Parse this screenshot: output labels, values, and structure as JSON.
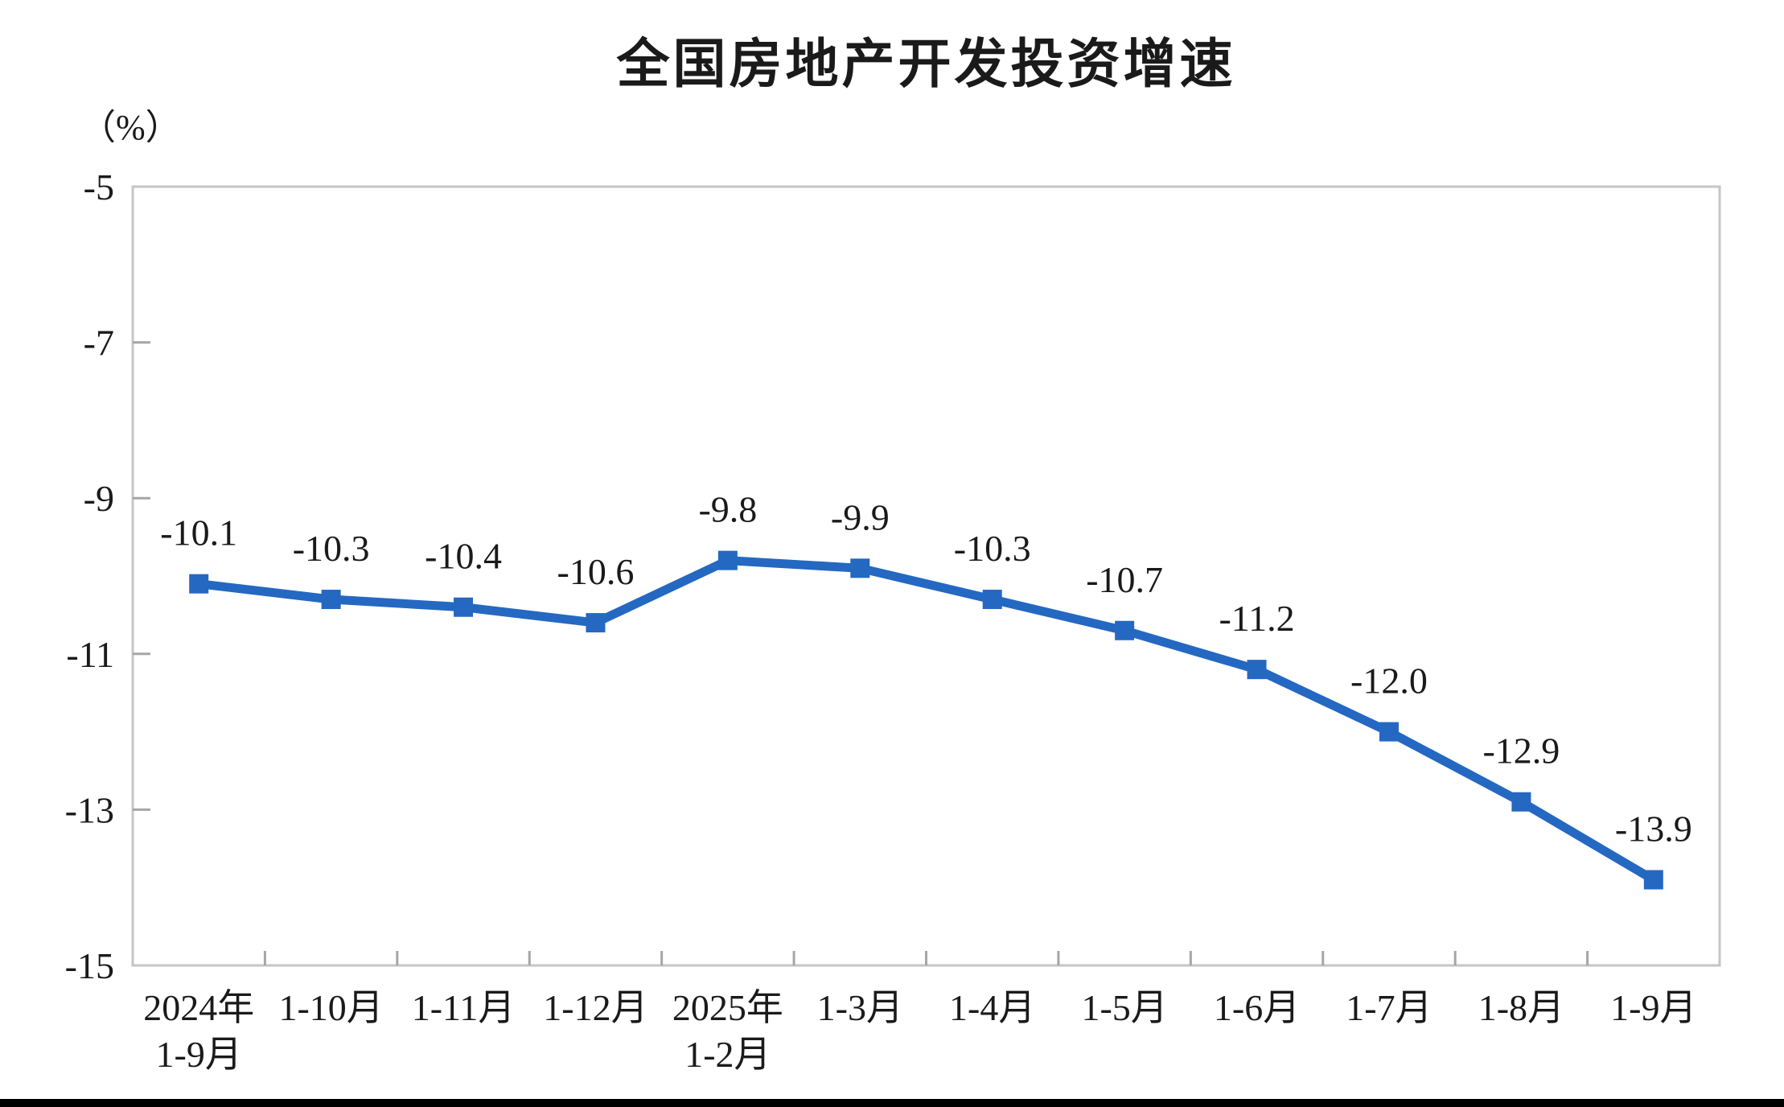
{
  "chart_data": {
    "type": "line",
    "title": "全国房地产开发投资增速",
    "ylabel": "（%）",
    "categories": [
      "2024年\n1-9月",
      "1-10月",
      "1-11月",
      "1-12月",
      "2025年\n1-2月",
      "1-3月",
      "1-4月",
      "1-5月",
      "1-6月",
      "1-7月",
      "1-8月",
      "1-9月"
    ],
    "series": [
      {
        "name": "全国房地产开发投资增速",
        "values": [
          -10.1,
          -10.3,
          -10.4,
          -10.6,
          -9.8,
          -9.9,
          -10.3,
          -10.7,
          -11.2,
          -12.0,
          -12.9,
          -13.9
        ],
        "data_labels": [
          "-10.1",
          "-10.3",
          "-10.4",
          "-10.6",
          "-9.8",
          "-9.9",
          "-10.3",
          "-10.7",
          "-11.2",
          "-12.0",
          "-12.9",
          "-13.9"
        ]
      }
    ],
    "y_ticks": [
      "-5",
      "-7",
      "-9",
      "-11",
      "-13",
      "-15"
    ],
    "y_tick_values": [
      -5,
      -7,
      -9,
      -11,
      -13,
      -15
    ],
    "ylim": [
      -15,
      -5
    ],
    "grid": false,
    "legend": false,
    "marker": "square",
    "colors": {
      "line": "#2468c2",
      "marker": "#2468c2",
      "axis_frame": "#c6c6c6",
      "tick": "#a6a6a6",
      "text": "#1a1a1a",
      "background": "#ffffff",
      "bottom_bar": "#000000"
    }
  }
}
